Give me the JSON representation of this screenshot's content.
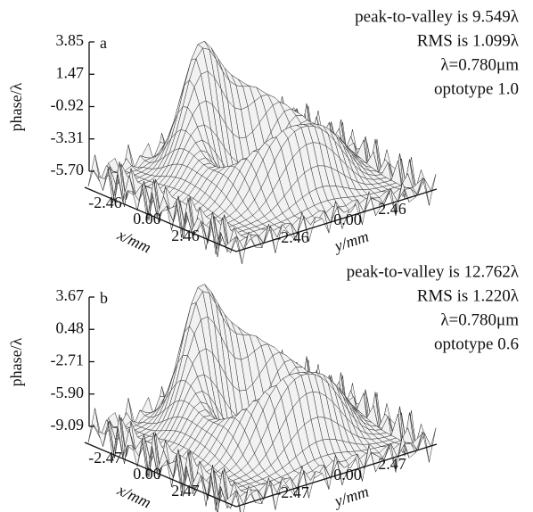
{
  "panels": [
    {
      "label": "a",
      "z_label": "phase/λ",
      "z_ticks": [
        "3.85",
        "1.47",
        "-0.92",
        "-3.31",
        "-5.70"
      ],
      "x_label": "x/mm",
      "x_ticks": [
        "-2.46",
        "0.00",
        "2.46"
      ],
      "y_label": "y/mm",
      "y_ticks": [
        "-2.46",
        "0.00",
        "2.46"
      ],
      "annotations": [
        "peak-to-valley is 9.549λ",
        "RMS is 1.099λ",
        "λ=0.780μm",
        "optotype 1.0"
      ]
    },
    {
      "label": "b",
      "z_label": "phase/λ",
      "z_ticks": [
        "3.67",
        "0.48",
        "-2.71",
        "-5.90",
        "-9.09"
      ],
      "x_label": "x/mm",
      "x_ticks": [
        "-2.47",
        "0.00",
        "2.47"
      ],
      "y_label": "y/mm",
      "y_ticks": [
        "-2.47",
        "0.00",
        "2.47"
      ],
      "annotations": [
        "peak-to-valley is 12.762λ",
        "RMS is 1.220λ",
        "λ=0.780μm",
        "optotype 0.6"
      ]
    }
  ]
}
